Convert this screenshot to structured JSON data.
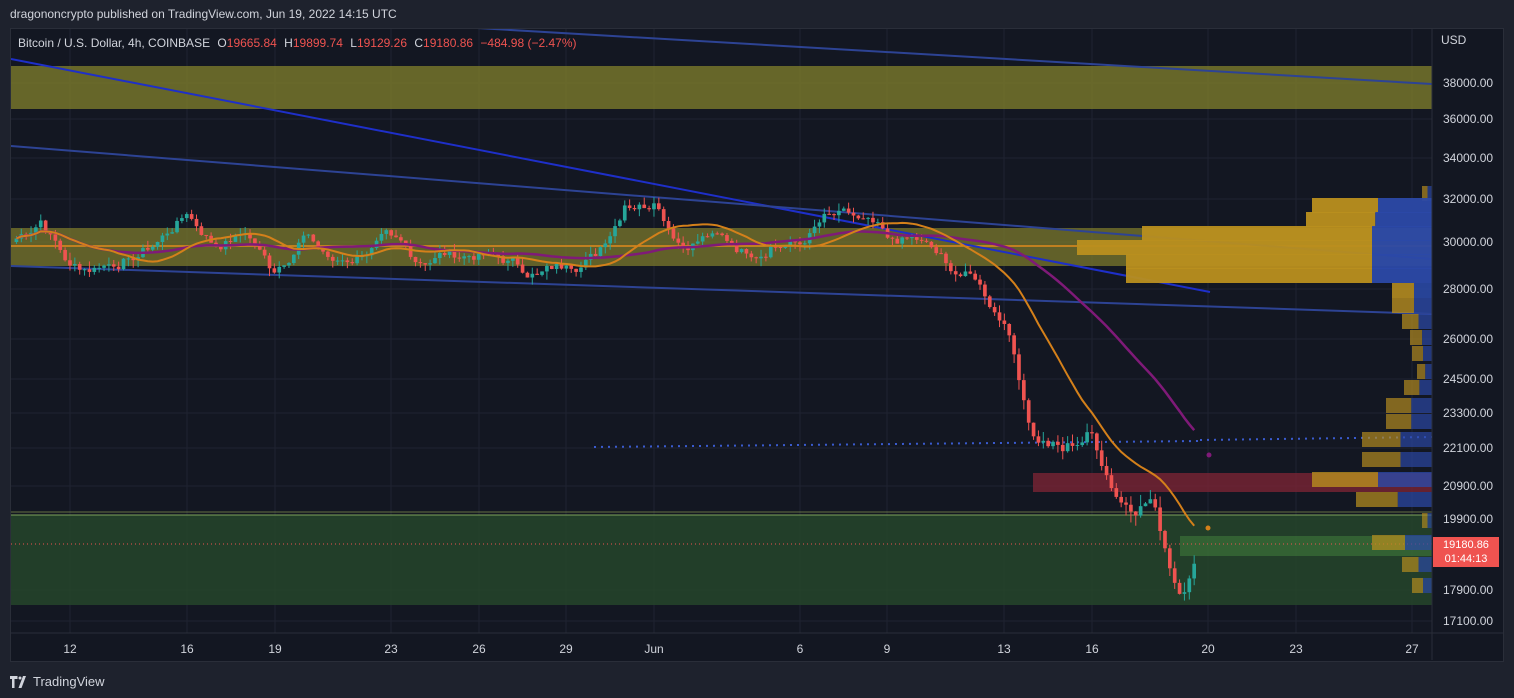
{
  "header": {
    "published": "dragononcrypto published on TradingView.com, Jun 19, 2022 14:15 UTC"
  },
  "legend": {
    "symbol": "Bitcoin / U.S. Dollar, 4h, COINBASE",
    "open": "19665.84",
    "high": "19899.74",
    "low": "19129.26",
    "close": "19180.86",
    "change": "−484.98 (−2.47%)"
  },
  "price_axis": {
    "currency": "USD",
    "last_price": "19180.86",
    "countdown": "01:44:13"
  },
  "footer": {
    "brand": "TradingView"
  },
  "colors": {
    "background": "#131722",
    "up_candle": "#26a69a",
    "down_candle": "#ef5350",
    "ema_orange": "#e08a1e",
    "ma_purple": "#8b1a7e",
    "trendline_blue": "#2a3f9e",
    "zone_yellow": "#8c8a2e",
    "zone_green": "#2b5a2e",
    "zone_red": "#7a2434"
  },
  "chart_data": {
    "type": "candlestick",
    "title": "",
    "xlabel": "",
    "ylabel": "USD",
    "y_ticks": [
      "38000.00",
      "36000.00",
      "34000.00",
      "32000.00",
      "30000.00",
      "28000.00",
      "26000.00",
      "24500.00",
      "23300.00",
      "22100.00",
      "20900.00",
      "19900.00",
      "17900.00",
      "17100.00"
    ],
    "x_ticks": [
      "12",
      "16",
      "19",
      "23",
      "26",
      "29",
      "Jun",
      "6",
      "9",
      "13",
      "16",
      "20",
      "23",
      "27"
    ],
    "series": [
      {
        "name": "",
        "type": "ohlc",
        "bars_daily_close_approx": [
          {
            "x": "May 10",
            "close": 31000
          },
          {
            "x": "May 11",
            "close": 29000
          },
          {
            "x": "May 12",
            "close": 28900
          },
          {
            "x": "May 13",
            "close": 29300
          },
          {
            "x": "May 14",
            "close": 30000
          },
          {
            "x": "May 15",
            "close": 31300
          },
          {
            "x": "May 16",
            "close": 29800
          },
          {
            "x": "May 17",
            "close": 30400
          },
          {
            "x": "May 18",
            "close": 28700
          },
          {
            "x": "May 19",
            "close": 30300
          },
          {
            "x": "May 20",
            "close": 29200
          },
          {
            "x": "May 21",
            "close": 29400
          },
          {
            "x": "May 22",
            "close": 30300
          },
          {
            "x": "May 23",
            "close": 29100
          },
          {
            "x": "May 24",
            "close": 29600
          },
          {
            "x": "May 25",
            "close": 29500
          },
          {
            "x": "May 26",
            "close": 29200
          },
          {
            "x": "May 27",
            "close": 28600
          },
          {
            "x": "May 28",
            "close": 29000
          },
          {
            "x": "May 29",
            "close": 29400
          },
          {
            "x": "May 30",
            "close": 31700
          },
          {
            "x": "May 31",
            "close": 31800
          },
          {
            "x": "Jun 1",
            "close": 29800
          },
          {
            "x": "Jun 2",
            "close": 30400
          },
          {
            "x": "Jun 3",
            "close": 29700
          },
          {
            "x": "Jun 4",
            "close": 29800
          },
          {
            "x": "Jun 5",
            "close": 29900
          },
          {
            "x": "Jun 6",
            "close": 31300
          },
          {
            "x": "Jun 7",
            "close": 31100
          },
          {
            "x": "Jun 8",
            "close": 30200
          },
          {
            "x": "Jun 9",
            "close": 30100
          },
          {
            "x": "Jun 10",
            "close": 29100
          },
          {
            "x": "Jun 11",
            "close": 28400
          },
          {
            "x": "Jun 12",
            "close": 26600
          },
          {
            "x": "Jun 13",
            "close": 22500
          },
          {
            "x": "Jun 14",
            "close": 22000
          },
          {
            "x": "Jun 15",
            "close": 22600
          },
          {
            "x": "Jun 16",
            "close": 20400
          },
          {
            "x": "Jun 17",
            "close": 20500
          },
          {
            "x": "Jun 18",
            "close": 17800
          },
          {
            "x": "Jun 19",
            "close": 19180.86
          }
        ]
      }
    ],
    "zones": [
      {
        "name": "",
        "from": 36800,
        "to": 38800
      },
      {
        "name": "",
        "from": 29100,
        "to": 30700
      },
      {
        "name": "",
        "from": 20700,
        "to": 21300
      },
      {
        "name": "",
        "from": 17400,
        "to": 19900
      }
    ]
  }
}
